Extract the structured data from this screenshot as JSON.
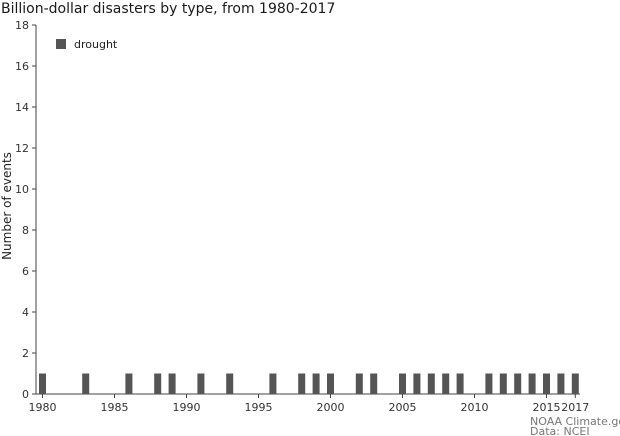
{
  "chart_data": {
    "type": "bar",
    "title": "Billion-dollar disasters by type, from 1980-2017",
    "xlabel": "",
    "ylabel": "Number of events",
    "ylim": [
      0,
      18
    ],
    "y_ticks": [
      0,
      2,
      4,
      6,
      8,
      10,
      12,
      14,
      16,
      18
    ],
    "x_range": [
      1980,
      2017
    ],
    "x_ticks": [
      1980,
      1985,
      1990,
      1995,
      2000,
      2005,
      2010,
      2015,
      2017
    ],
    "legend_position": "top-left",
    "grid": false,
    "series": [
      {
        "name": "drought",
        "color": "#555555",
        "points": [
          {
            "x": 1980,
            "y": 1
          },
          {
            "x": 1983,
            "y": 1
          },
          {
            "x": 1986,
            "y": 1
          },
          {
            "x": 1988,
            "y": 1
          },
          {
            "x": 1989,
            "y": 1
          },
          {
            "x": 1991,
            "y": 1
          },
          {
            "x": 1993,
            "y": 1
          },
          {
            "x": 1996,
            "y": 1
          },
          {
            "x": 1998,
            "y": 1
          },
          {
            "x": 1999,
            "y": 1
          },
          {
            "x": 2000,
            "y": 1
          },
          {
            "x": 2002,
            "y": 1
          },
          {
            "x": 2003,
            "y": 1
          },
          {
            "x": 2005,
            "y": 1
          },
          {
            "x": 2006,
            "y": 1
          },
          {
            "x": 2007,
            "y": 1
          },
          {
            "x": 2008,
            "y": 1
          },
          {
            "x": 2009,
            "y": 1
          },
          {
            "x": 2011,
            "y": 1
          },
          {
            "x": 2012,
            "y": 1
          },
          {
            "x": 2013,
            "y": 1
          },
          {
            "x": 2014,
            "y": 1
          },
          {
            "x": 2015,
            "y": 1
          },
          {
            "x": 2016,
            "y": 1
          },
          {
            "x": 2017,
            "y": 1
          }
        ]
      }
    ]
  },
  "credits": {
    "line1": "NOAA Climate.gov",
    "line2": "Data: NCEI"
  }
}
